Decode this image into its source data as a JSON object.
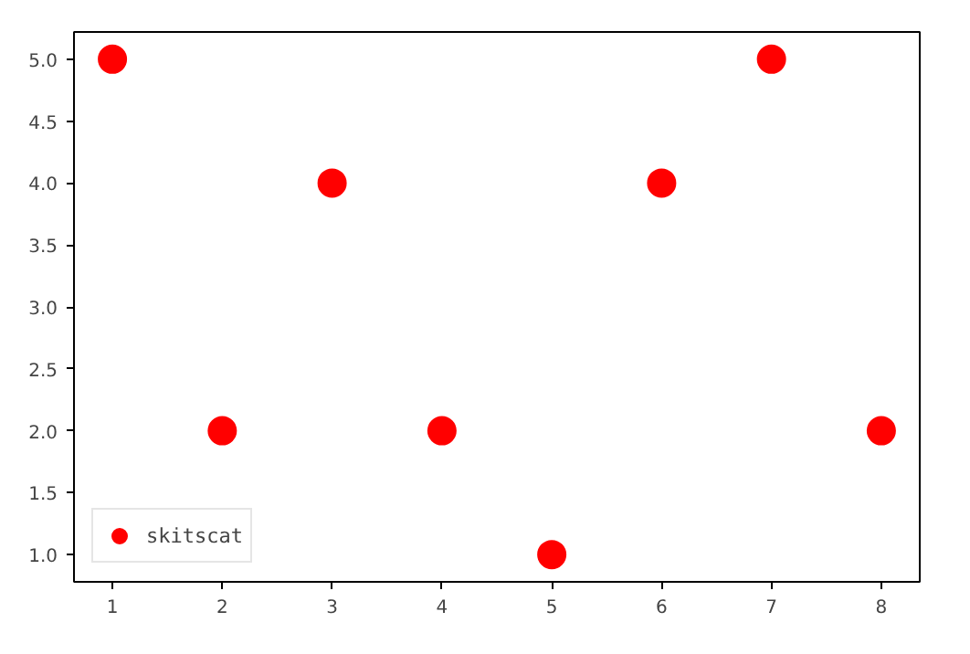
{
  "chart_data": {
    "type": "scatter",
    "x": [
      1,
      2,
      3,
      4,
      5,
      6,
      7,
      8
    ],
    "series": [
      {
        "name": "skitscat",
        "color": "#ff0000",
        "values": [
          5,
          2,
          4,
          2,
          1,
          4,
          5,
          2
        ]
      }
    ],
    "xlim": [
      0.65,
      8.35
    ],
    "ylim": [
      0.78,
      5.22
    ],
    "xticks": [
      1,
      2,
      3,
      4,
      5,
      6,
      7,
      8
    ],
    "yticks": [
      {
        "value": 1,
        "label": "1.0"
      },
      {
        "value": 1.5,
        "label": "1.5"
      },
      {
        "value": 2,
        "label": "2.0"
      },
      {
        "value": 2.5,
        "label": "2.5"
      },
      {
        "value": 3,
        "label": "3.0"
      },
      {
        "value": 3.5,
        "label": "3.5"
      },
      {
        "value": 4,
        "label": "4.0"
      },
      {
        "value": 4.5,
        "label": "4.5"
      },
      {
        "value": 5,
        "label": "5.0"
      }
    ],
    "marker": "circle",
    "grid": false,
    "legend": "bottom left"
  }
}
